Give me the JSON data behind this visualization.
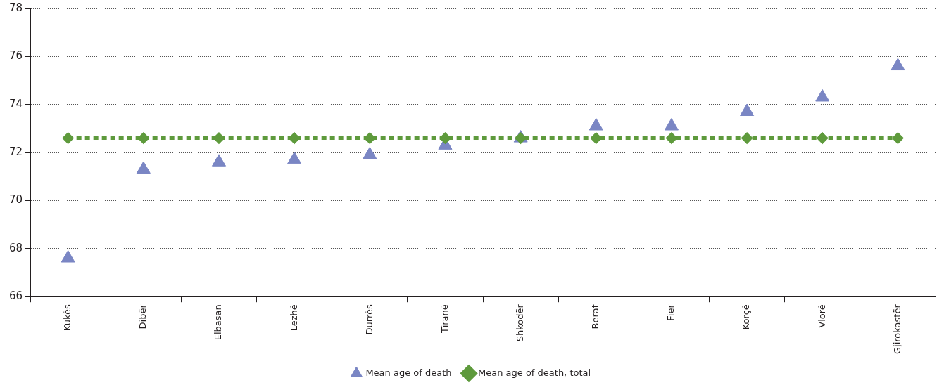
{
  "chart_data": {
    "type": "scatter",
    "categories": [
      "Kukës",
      "Dibër",
      "Elbasan",
      "Lezhë",
      "Durrës",
      "Tiranë",
      "Shkodër",
      "Berat",
      "Fier",
      "Korçë",
      "Vlorë",
      "Gjirokastër"
    ],
    "series": [
      {
        "name": "Mean age of death",
        "marker": "triangle",
        "color": "#7a86c4",
        "values": [
          67.6,
          71.3,
          71.6,
          71.7,
          71.9,
          72.3,
          72.6,
          73.1,
          73.1,
          73.7,
          74.3,
          75.6
        ]
      },
      {
        "name": "Mean age of death, total",
        "type": "line",
        "marker": "diamond",
        "line_style": "dashed",
        "color": "#5e9a3c",
        "values": [
          72.6,
          72.6,
          72.6,
          72.6,
          72.6,
          72.6,
          72.6,
          72.6,
          72.6,
          72.6,
          72.6,
          72.6
        ]
      }
    ],
    "ylim": [
      66,
      78
    ],
    "yticks": [
      66,
      68,
      70,
      72,
      74,
      76,
      78
    ],
    "grid": "y",
    "legend": "bottom"
  }
}
